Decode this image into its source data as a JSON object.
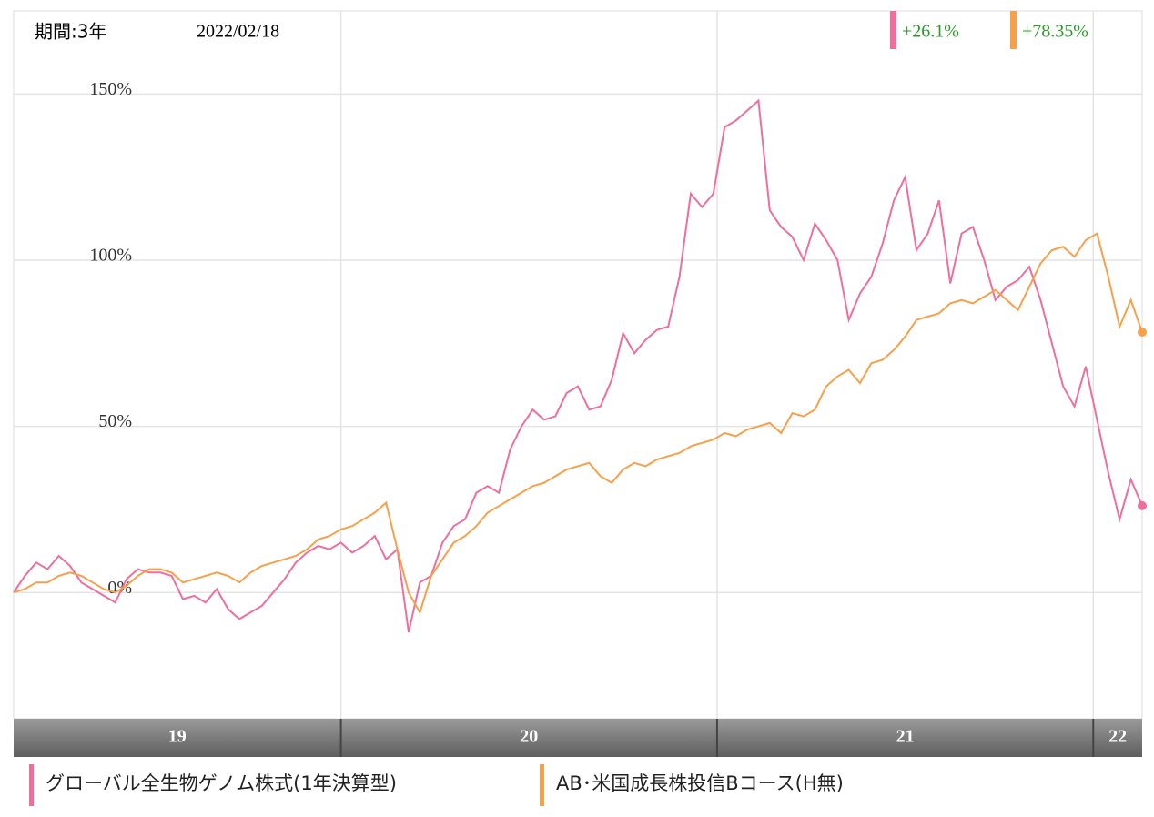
{
  "chart_data": {
    "type": "line",
    "period": "期間:3年",
    "date": "2022/02/18",
    "change_labels": [
      "+26.1%",
      "+78.35%"
    ],
    "xlim": [
      2019.13,
      2022.13
    ],
    "xbands": [
      {
        "value": 2019,
        "label": "19"
      },
      {
        "value": 2020,
        "label": "20"
      },
      {
        "value": 2021,
        "label": "21"
      },
      {
        "value": 2022,
        "label": "22"
      }
    ],
    "ylim": [
      -38,
      175
    ],
    "yticks": [
      {
        "value": 0,
        "label": "0%"
      },
      {
        "value": 50,
        "label": "50%"
      },
      {
        "value": 100,
        "label": "100%"
      },
      {
        "value": 150,
        "label": "150%"
      }
    ],
    "grid": true,
    "series": [
      {
        "name": "グローバル全生物ゲノム株式(1年決算型)",
        "color": "#f06e9c",
        "values": [
          0,
          5,
          9,
          7,
          11,
          8,
          3,
          1,
          -1,
          -3,
          4,
          7,
          6,
          6,
          5,
          -2,
          -1,
          -3,
          1,
          -5,
          -8,
          -6,
          -4,
          0,
          4,
          9,
          12,
          14,
          13,
          15,
          12,
          14,
          17,
          10,
          13,
          -12,
          3,
          5,
          15,
          20,
          22,
          30,
          32,
          30,
          43,
          50,
          55,
          52,
          53,
          60,
          62,
          55,
          56,
          64,
          78,
          72,
          76,
          79,
          80,
          95,
          120,
          116,
          120,
          140,
          142,
          145,
          148,
          115,
          110,
          107,
          100,
          111,
          106,
          100,
          82,
          90,
          95,
          105,
          118,
          125,
          103,
          108,
          118,
          93,
          108,
          110,
          100,
          88,
          92,
          94,
          98,
          88,
          75,
          62,
          56,
          68,
          52,
          36,
          22,
          34,
          26.1
        ]
      },
      {
        "name": "AB･米国成長株投信Bコース(H無)",
        "color": "#f7a04a",
        "values": [
          0,
          1,
          3,
          3,
          5,
          6,
          5,
          3,
          1,
          0,
          2,
          5,
          7,
          7,
          6,
          3,
          4,
          5,
          6,
          5,
          3,
          6,
          8,
          9,
          10,
          11,
          13,
          16,
          17,
          19,
          20,
          22,
          24,
          27,
          13,
          0,
          -6,
          5,
          10,
          15,
          17,
          20,
          24,
          26,
          28,
          30,
          32,
          33,
          35,
          37,
          38,
          39,
          35,
          33,
          37,
          39,
          38,
          40,
          41,
          42,
          44,
          45,
          46,
          48,
          47,
          49,
          50,
          51,
          48,
          54,
          53,
          55,
          62,
          65,
          67,
          63,
          69,
          70,
          73,
          77,
          82,
          83,
          84,
          87,
          88,
          87,
          89,
          91,
          88,
          85,
          92,
          99,
          103,
          104,
          101,
          106,
          108,
          95,
          80,
          88,
          78.35
        ]
      }
    ]
  }
}
